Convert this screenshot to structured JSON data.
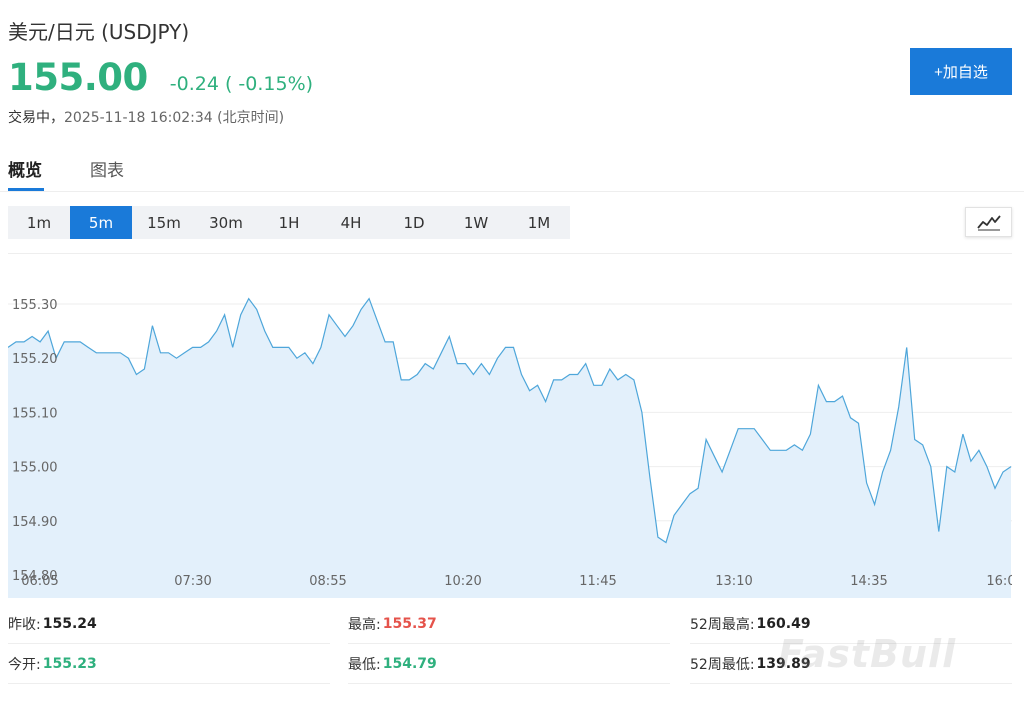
{
  "header": {
    "title": "美元/日元 (USDJPY)",
    "price": "155.00",
    "change": "-0.24 ( -0.15%)",
    "status_label": "交易中，",
    "status_time": "2025-11-18 16:02:34 (北京时间)",
    "add_button": "+加自选"
  },
  "tabs": [
    {
      "label": "概览",
      "active": true
    },
    {
      "label": "图表",
      "active": false
    }
  ],
  "timeframes": [
    {
      "label": "1m",
      "active": false
    },
    {
      "label": "5m",
      "active": true
    },
    {
      "label": "15m",
      "active": false
    },
    {
      "label": "30m",
      "active": false
    },
    {
      "label": "1H",
      "active": false
    },
    {
      "label": "4H",
      "active": false
    },
    {
      "label": "1D",
      "active": false
    },
    {
      "label": "1W",
      "active": false
    },
    {
      "label": "1M",
      "active": false
    }
  ],
  "chart_type_icon": "line-chart-icon",
  "colors": {
    "up_green": "#2fb07e",
    "down_red": "#e5534b",
    "accent_blue": "#1a7ad9",
    "line": "#4ea6da",
    "area_fill": "#e3f0fb"
  },
  "chart_data": {
    "type": "area",
    "ylim": [
      154.8,
      155.4
    ],
    "y_ticks": [
      "155.30",
      "155.20",
      "155.10",
      "155.00",
      "154.90",
      "154.80"
    ],
    "x_ticks": [
      "06:05",
      "07:30",
      "08:55",
      "10:20",
      "11:45",
      "13:10",
      "14:35",
      "16:0"
    ],
    "values": [
      155.22,
      155.23,
      155.23,
      155.24,
      155.23,
      155.25,
      155.2,
      155.23,
      155.23,
      155.23,
      155.22,
      155.21,
      155.21,
      155.21,
      155.21,
      155.2,
      155.17,
      155.18,
      155.26,
      155.21,
      155.21,
      155.2,
      155.21,
      155.22,
      155.22,
      155.23,
      155.25,
      155.28,
      155.22,
      155.28,
      155.31,
      155.29,
      155.25,
      155.22,
      155.22,
      155.22,
      155.2,
      155.21,
      155.19,
      155.22,
      155.28,
      155.26,
      155.24,
      155.26,
      155.29,
      155.31,
      155.27,
      155.23,
      155.23,
      155.16,
      155.16,
      155.17,
      155.19,
      155.18,
      155.21,
      155.24,
      155.19,
      155.19,
      155.17,
      155.19,
      155.17,
      155.2,
      155.22,
      155.22,
      155.17,
      155.14,
      155.15,
      155.12,
      155.16,
      155.16,
      155.17,
      155.17,
      155.19,
      155.15,
      155.15,
      155.18,
      155.16,
      155.17,
      155.16,
      155.1,
      154.98,
      154.87,
      154.86,
      154.91,
      154.93,
      154.95,
      154.96,
      155.05,
      155.02,
      154.99,
      155.03,
      155.07,
      155.07,
      155.07,
      155.05,
      155.03,
      155.03,
      155.03,
      155.04,
      155.03,
      155.06,
      155.15,
      155.12,
      155.12,
      155.13,
      155.09,
      155.08,
      154.97,
      154.93,
      154.99,
      155.03,
      155.11,
      155.22,
      155.05,
      155.04,
      155.0,
      154.88,
      155.0,
      154.99,
      155.06,
      155.01,
      155.03,
      155.0,
      154.96,
      154.99,
      155.0
    ]
  },
  "stats": {
    "prev_close_label": "昨收:",
    "prev_close": "155.24",
    "open_label": "今开:",
    "open": "155.23",
    "high_label": "最高:",
    "high": "155.37",
    "low_label": "最低:",
    "low": "154.79",
    "w52_high_label": "52周最高:",
    "w52_high": "160.49",
    "w52_low_label": "52周最低:",
    "w52_low": "139.89"
  },
  "watermark": "FastBull"
}
